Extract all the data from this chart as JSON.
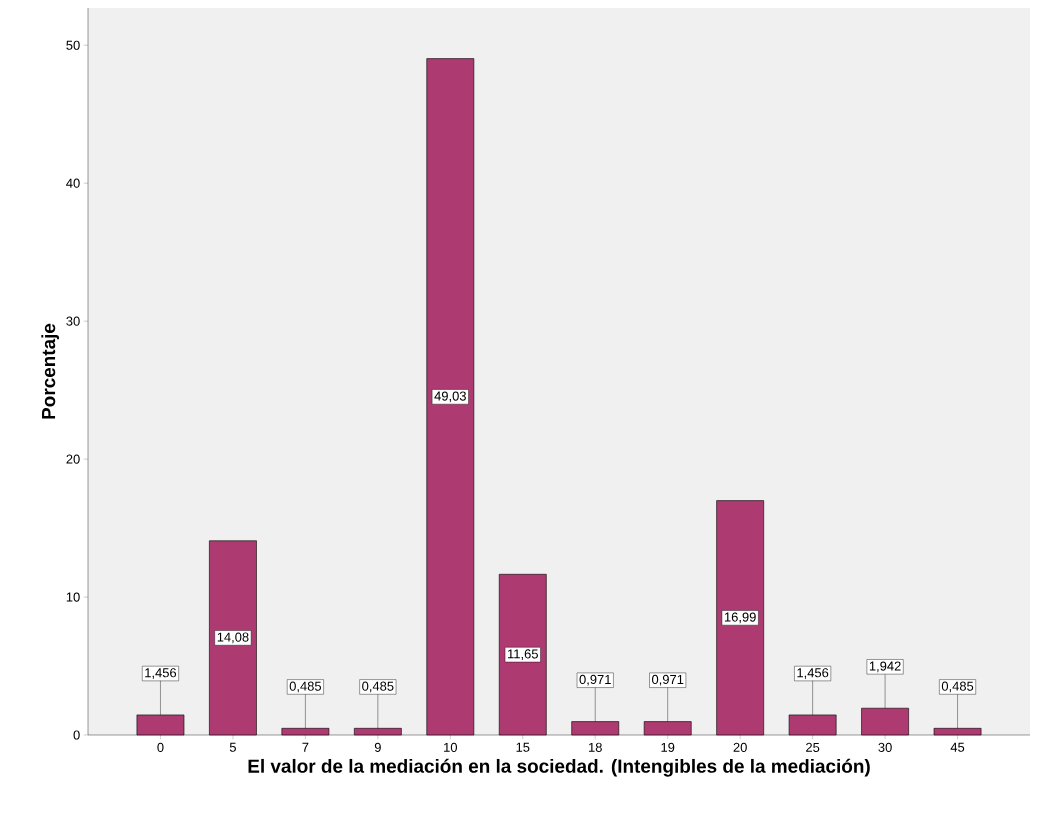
{
  "chart_data": {
    "type": "bar",
    "xlabel": "El valor de la mediación en la sociedad. (Intengibles de la mediación)",
    "ylabel": "Porcentaje",
    "categories": [
      "0",
      "5",
      "7",
      "9",
      "10",
      "15",
      "18",
      "19",
      "20",
      "25",
      "30",
      "45"
    ],
    "values": [
      1.456,
      14.08,
      0.485,
      0.485,
      49.03,
      11.65,
      0.971,
      0.971,
      16.99,
      1.456,
      1.942,
      0.485
    ],
    "value_labels": [
      "1,456",
      "14,08",
      "0,485",
      "0,485",
      "49,03",
      "11,65",
      "0,971",
      "0,971",
      "16,99",
      "1,456",
      "1,942",
      "0,485"
    ],
    "color": "#ad3a70",
    "ylim": [
      0,
      52.7
    ],
    "yticks": [
      0,
      10,
      20,
      30,
      40,
      50
    ],
    "grid": false
  }
}
